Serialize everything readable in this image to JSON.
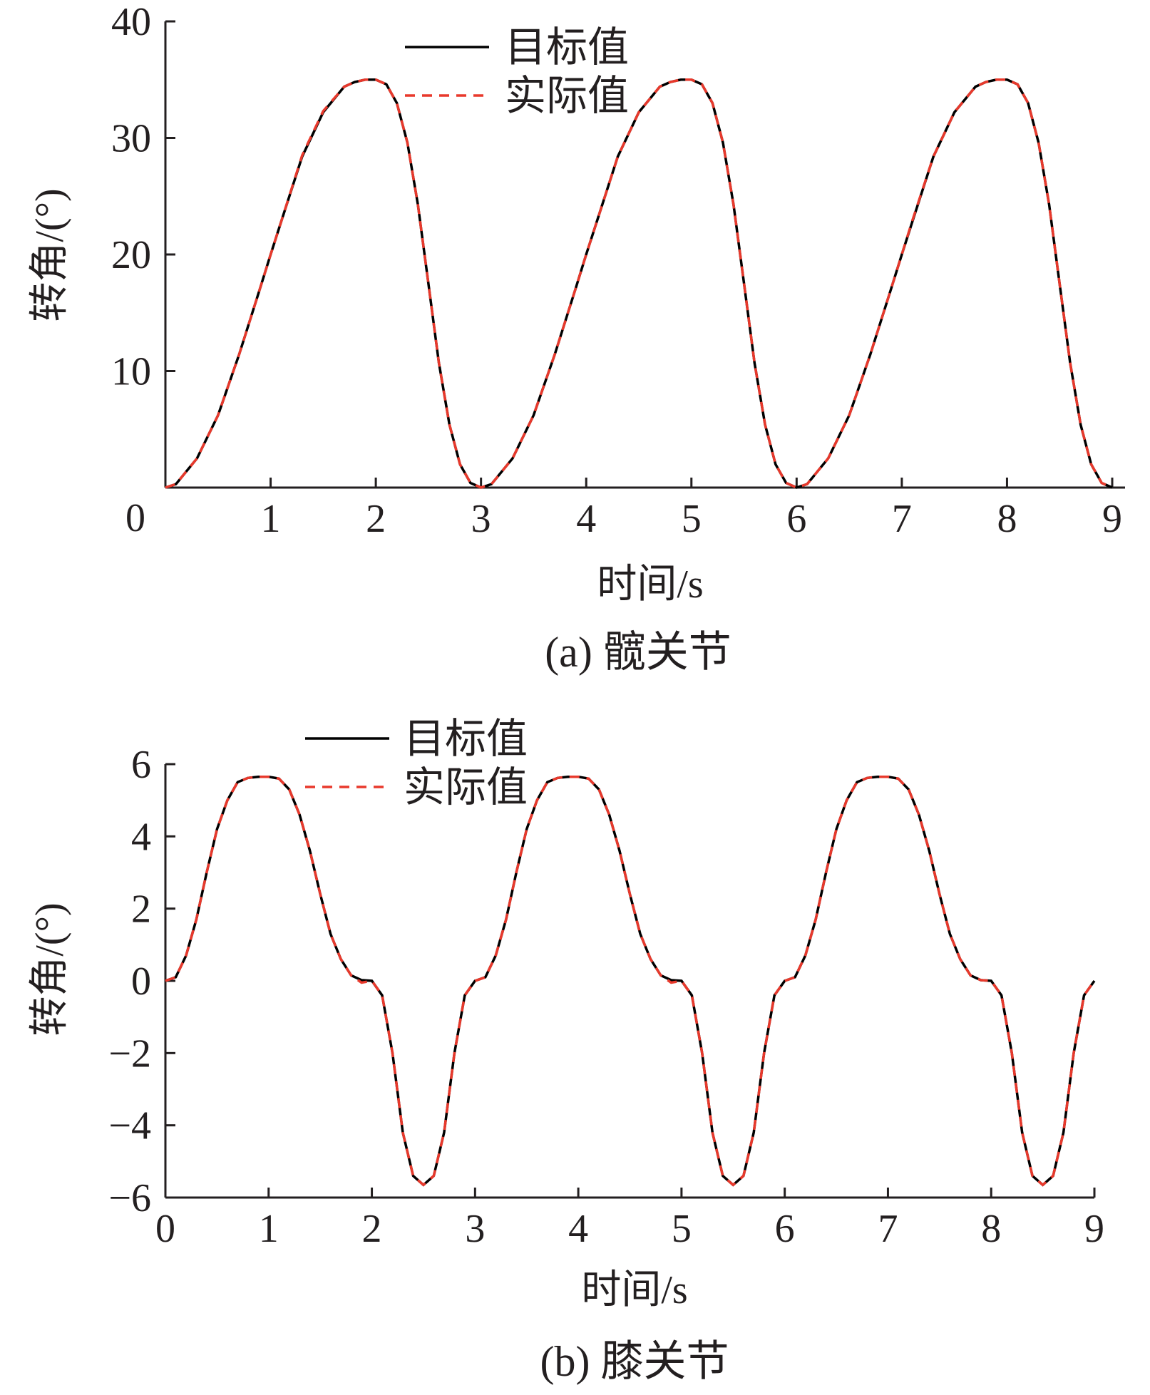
{
  "chart_data": [
    {
      "type": "line",
      "caption": "(a)  髋关节",
      "xlabel": "时间/s",
      "ylabel": "转角/(°)",
      "xlim": [
        0,
        9
      ],
      "ylim": [
        0,
        40
      ],
      "xticks": [
        0,
        1,
        2,
        3,
        4,
        5,
        6,
        7,
        8,
        9
      ],
      "xtick_labels": [
        "0",
        "1",
        "2",
        "3",
        "4",
        "5",
        "6",
        "7",
        "8",
        "9"
      ],
      "yticks": [
        10,
        20,
        30,
        40
      ],
      "ytick_labels": [
        "10",
        "20",
        "30",
        "40"
      ],
      "legend_position": "top-center",
      "series": [
        {
          "name": "目标值",
          "style": "solid",
          "color": "#000000",
          "x": [
            0,
            0.1,
            0.3,
            0.5,
            0.7,
            0.9,
            1.0,
            1.1,
            1.3,
            1.5,
            1.7,
            1.8,
            1.9,
            2.0,
            2.1,
            2.2,
            2.3,
            2.4,
            2.5,
            2.6,
            2.7,
            2.8,
            2.9,
            3.0,
            3.1,
            3.3,
            3.5,
            3.7,
            3.9,
            4.0,
            4.1,
            4.3,
            4.5,
            4.7,
            4.8,
            4.9,
            5.0,
            5.1,
            5.2,
            5.3,
            5.4,
            5.5,
            5.6,
            5.7,
            5.8,
            5.9,
            6.0,
            6.1,
            6.3,
            6.5,
            6.7,
            6.9,
            7.0,
            7.1,
            7.3,
            7.5,
            7.7,
            7.8,
            7.9,
            8.0,
            8.1,
            8.2,
            8.3,
            8.4,
            8.5,
            8.6,
            8.7,
            8.8,
            8.9,
            9.0
          ],
          "values": [
            0,
            0.3,
            2.5,
            6.2,
            11.4,
            17.1,
            20.0,
            22.8,
            28.4,
            32.2,
            34.4,
            34.8,
            35.0,
            35.0,
            34.6,
            33.0,
            29.6,
            24.3,
            17.5,
            10.7,
            5.4,
            2.0,
            0.4,
            0,
            0.3,
            2.5,
            6.2,
            11.4,
            17.1,
            20.0,
            22.8,
            28.4,
            32.2,
            34.4,
            34.8,
            35.0,
            35.0,
            34.6,
            33.0,
            29.6,
            24.3,
            17.5,
            10.7,
            5.4,
            2.0,
            0.4,
            0,
            0.3,
            2.5,
            6.2,
            11.4,
            17.1,
            20.0,
            22.8,
            28.4,
            32.2,
            34.4,
            34.8,
            35.0,
            35.0,
            34.6,
            33.0,
            29.6,
            24.3,
            17.5,
            10.7,
            5.4,
            2.0,
            0.4,
            0
          ]
        },
        {
          "name": "实际值",
          "style": "dashed",
          "color": "#e8392c",
          "x": [
            0,
            0.1,
            0.3,
            0.5,
            0.7,
            0.9,
            1.0,
            1.1,
            1.3,
            1.5,
            1.7,
            1.8,
            1.9,
            2.0,
            2.1,
            2.2,
            2.3,
            2.4,
            2.5,
            2.6,
            2.7,
            2.8,
            2.9,
            3.0,
            3.1,
            3.3,
            3.5,
            3.7,
            3.9,
            4.0,
            4.1,
            4.3,
            4.5,
            4.7,
            4.8,
            4.9,
            5.0,
            5.1,
            5.2,
            5.3,
            5.4,
            5.5,
            5.6,
            5.7,
            5.8,
            5.9,
            6.0,
            6.1,
            6.3,
            6.5,
            6.7,
            6.9,
            7.0,
            7.1,
            7.3,
            7.5,
            7.7,
            7.8,
            7.9,
            8.0,
            8.1,
            8.2,
            8.3,
            8.4,
            8.5,
            8.6,
            8.7,
            8.8,
            8.9,
            9.0
          ],
          "values": [
            0,
            0.3,
            2.5,
            6.2,
            11.4,
            17.1,
            20.0,
            22.8,
            28.5,
            32.3,
            34.4,
            34.8,
            35.0,
            35.0,
            34.6,
            33.0,
            29.6,
            24.3,
            17.5,
            10.7,
            5.4,
            2.0,
            0.4,
            0,
            0.3,
            2.5,
            6.2,
            11.4,
            17.1,
            20.0,
            22.8,
            28.4,
            32.2,
            34.4,
            34.8,
            35.0,
            35.0,
            34.6,
            33.0,
            29.6,
            24.3,
            17.5,
            10.7,
            5.4,
            2.0,
            0.4,
            0,
            0.3,
            2.5,
            6.2,
            11.4,
            17.1,
            20.0,
            22.9,
            28.4,
            32.2,
            34.4,
            34.8,
            35.0,
            35.0,
            34.6,
            33.0,
            29.6,
            24.3,
            17.5,
            10.7,
            5.4,
            2.0,
            0.4,
            0
          ]
        }
      ]
    },
    {
      "type": "line",
      "caption": "(b)  膝关节",
      "xlabel": "时间/s",
      "ylabel": "转角/(°)",
      "xlim": [
        0,
        9
      ],
      "ylim": [
        -6,
        6
      ],
      "xticks": [
        0,
        1,
        2,
        3,
        4,
        5,
        6,
        7,
        8,
        9
      ],
      "xtick_labels": [
        "0",
        "1",
        "2",
        "3",
        "4",
        "5",
        "6",
        "7",
        "8",
        "9"
      ],
      "yticks": [
        -6,
        -4,
        -2,
        0,
        2,
        4,
        6
      ],
      "ytick_labels": [
        "−6",
        "−4",
        "−2",
        "0",
        "2",
        "4",
        "6"
      ],
      "legend_position": "top-left",
      "series": [
        {
          "name": "目标值",
          "style": "solid",
          "color": "#000000",
          "x": [
            0,
            0.1,
            0.2,
            0.3,
            0.4,
            0.5,
            0.6,
            0.7,
            0.8,
            0.9,
            1.0,
            1.1,
            1.2,
            1.3,
            1.4,
            1.5,
            1.6,
            1.7,
            1.8,
            1.9,
            2.0,
            2.1,
            2.2,
            2.3,
            2.4,
            2.5,
            2.6,
            2.7,
            2.8,
            2.9,
            3.0,
            3.1,
            3.2,
            3.3,
            3.4,
            3.5,
            3.6,
            3.7,
            3.8,
            3.9,
            4.0,
            4.1,
            4.2,
            4.3,
            4.4,
            4.5,
            4.6,
            4.7,
            4.8,
            4.9,
            5.0,
            5.1,
            5.2,
            5.3,
            5.4,
            5.5,
            5.6,
            5.7,
            5.8,
            5.9,
            6.0,
            6.1,
            6.2,
            6.3,
            6.4,
            6.5,
            6.6,
            6.7,
            6.8,
            6.9,
            7.0,
            7.1,
            7.2,
            7.3,
            7.4,
            7.5,
            7.6,
            7.7,
            7.8,
            7.9,
            8.0,
            8.1,
            8.2,
            8.3,
            8.4,
            8.5,
            8.6,
            8.7,
            8.8,
            8.9,
            9.0
          ],
          "values": [
            0,
            0.1,
            0.7,
            1.7,
            3.0,
            4.2,
            5.0,
            5.5,
            5.62,
            5.65,
            5.65,
            5.6,
            5.3,
            4.6,
            3.6,
            2.4,
            1.3,
            0.6,
            0.15,
            0.02,
            0,
            -0.4,
            -2.0,
            -4.2,
            -5.4,
            -5.65,
            -5.4,
            -4.2,
            -2.0,
            -0.4,
            0,
            0.1,
            0.7,
            1.7,
            3.0,
            4.2,
            5.0,
            5.5,
            5.62,
            5.65,
            5.65,
            5.6,
            5.3,
            4.6,
            3.6,
            2.4,
            1.3,
            0.6,
            0.15,
            0.02,
            0,
            -0.4,
            -2.0,
            -4.2,
            -5.4,
            -5.65,
            -5.4,
            -4.2,
            -2.0,
            -0.4,
            0,
            0.1,
            0.7,
            1.7,
            3.0,
            4.2,
            5.0,
            5.5,
            5.62,
            5.65,
            5.65,
            5.6,
            5.3,
            4.6,
            3.6,
            2.4,
            1.3,
            0.6,
            0.15,
            0.02,
            0,
            -0.4,
            -2.0,
            -4.2,
            -5.4,
            -5.65,
            -5.4,
            -4.2,
            -2.0,
            -0.4,
            0
          ]
        },
        {
          "name": "实际值",
          "style": "dashed",
          "color": "#e8392c",
          "x": [
            0,
            0.1,
            0.2,
            0.3,
            0.4,
            0.5,
            0.6,
            0.7,
            0.8,
            0.9,
            1.0,
            1.1,
            1.2,
            1.3,
            1.4,
            1.5,
            1.6,
            1.7,
            1.8,
            1.9,
            2.0,
            2.1,
            2.2,
            2.3,
            2.4,
            2.5,
            2.6,
            2.7,
            2.8,
            2.9,
            3.0,
            3.1,
            3.2,
            3.3,
            3.4,
            3.5,
            3.6,
            3.7,
            3.8,
            3.9,
            4.0,
            4.1,
            4.2,
            4.3,
            4.4,
            4.5,
            4.6,
            4.7,
            4.8,
            4.9,
            5.0,
            5.1,
            5.2,
            5.3,
            5.4,
            5.5,
            5.6,
            5.7,
            5.8,
            5.9,
            6.0,
            6.1,
            6.2,
            6.3,
            6.4,
            6.5,
            6.6,
            6.7,
            6.8,
            6.9,
            7.0,
            7.1,
            7.2,
            7.3,
            7.4,
            7.5,
            7.6,
            7.7,
            7.8,
            7.9,
            8.0,
            8.1,
            8.2,
            8.3,
            8.4,
            8.5,
            8.6,
            8.7,
            8.8,
            8.9,
            9.0
          ],
          "values": [
            0,
            0.1,
            0.7,
            1.7,
            3.0,
            4.2,
            5.0,
            5.5,
            5.62,
            5.65,
            5.65,
            5.6,
            5.3,
            4.6,
            3.6,
            2.4,
            1.3,
            0.6,
            0.15,
            -0.05,
            0,
            -0.4,
            -2.0,
            -4.2,
            -5.4,
            -5.65,
            -5.4,
            -4.2,
            -2.0,
            -0.4,
            0,
            0.1,
            0.7,
            1.7,
            3.0,
            4.2,
            5.0,
            5.5,
            5.62,
            5.65,
            5.65,
            5.6,
            5.3,
            4.6,
            3.6,
            2.4,
            1.3,
            0.6,
            0.15,
            -0.05,
            0,
            -0.4,
            -2.0,
            -4.2,
            -5.4,
            -5.65,
            -5.4,
            -4.2,
            -2.0,
            -0.4,
            0,
            0.1,
            0.7,
            1.7,
            3.0,
            4.2,
            5.0,
            5.5,
            5.62,
            5.65,
            5.65,
            5.6,
            5.3,
            4.6,
            3.6,
            2.4,
            1.3,
            0.6,
            0.15,
            0.02,
            0,
            -0.4,
            -2.0,
            -4.2,
            -5.4,
            -5.65,
            -5.4,
            -4.2,
            -2.0,
            -0.4,
            0
          ]
        }
      ]
    }
  ]
}
